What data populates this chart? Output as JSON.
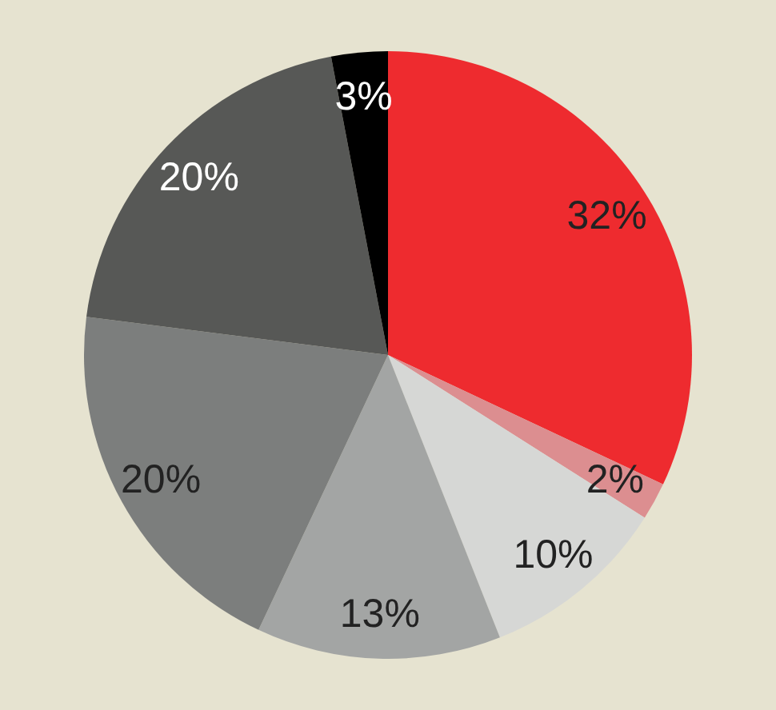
{
  "chart_data": {
    "type": "pie",
    "categories": [
      null,
      null,
      null,
      null,
      null,
      null,
      null
    ],
    "values": [
      32,
      2,
      10,
      13,
      20,
      20,
      3
    ],
    "colors": [
      "#ee2b2f",
      "#dc8e90",
      "#d6d7d5",
      "#a3a5a4",
      "#7c7e7d",
      "#575856",
      "#000000"
    ],
    "value_labels": [
      "32%",
      "2%",
      "10%",
      "13%",
      "20%",
      "20%",
      "3%"
    ]
  }
}
